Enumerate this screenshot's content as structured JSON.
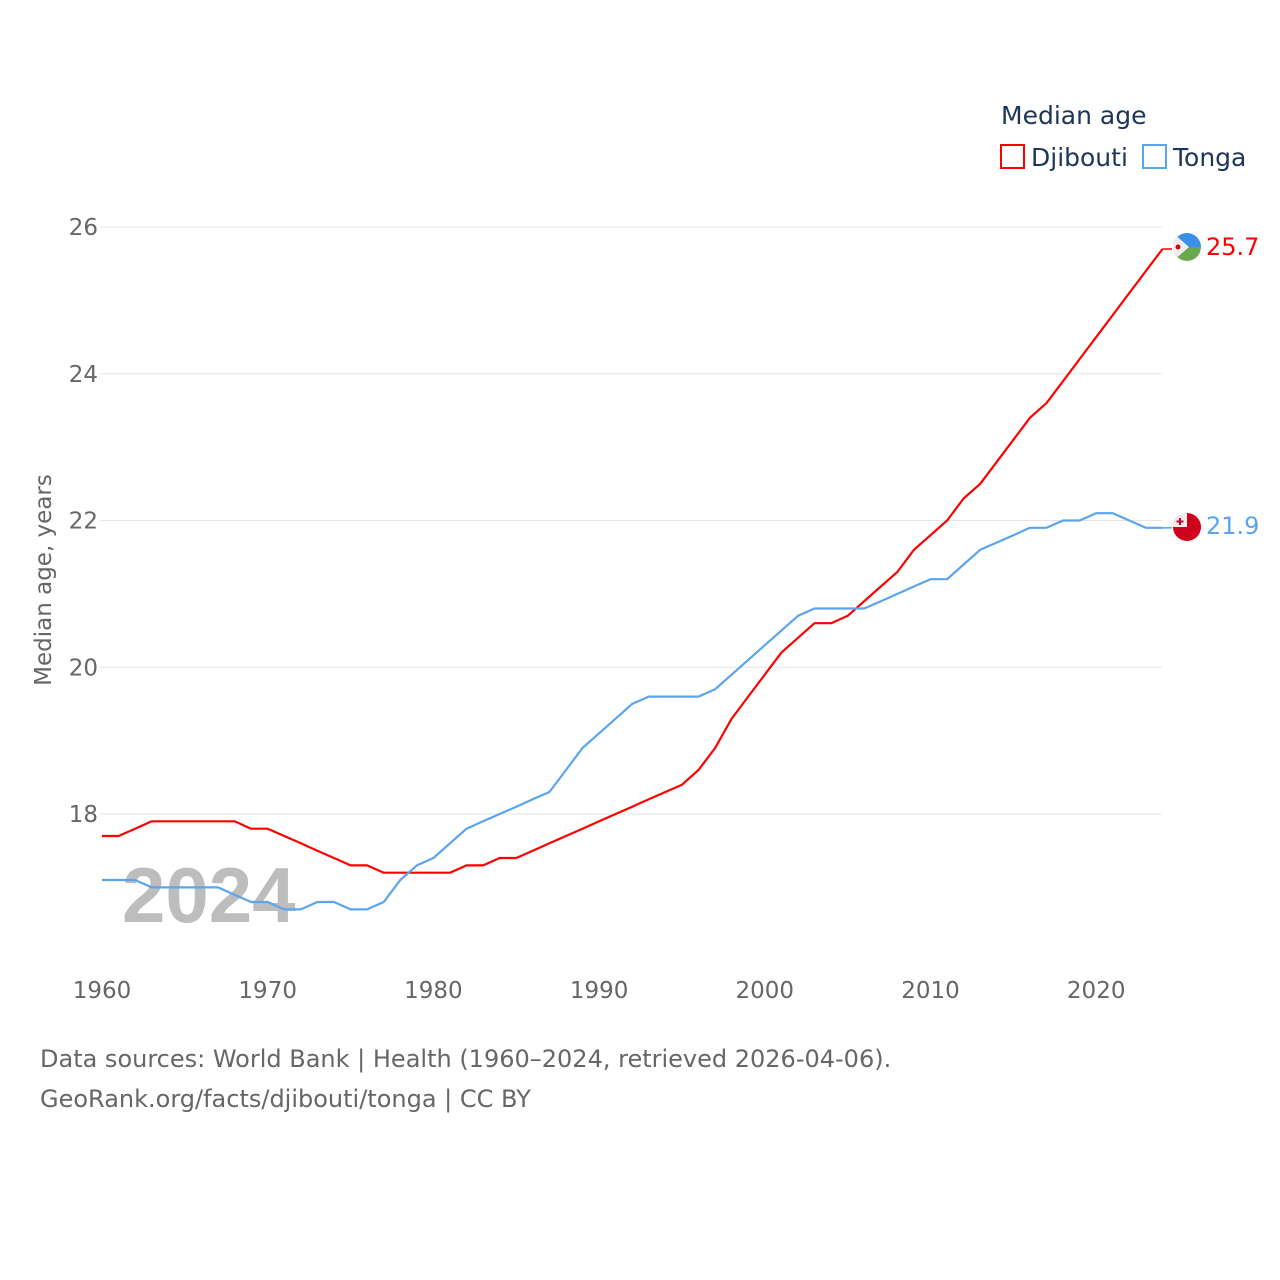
{
  "chart_data": {
    "type": "line",
    "title": "",
    "xlabel": "",
    "ylabel": "Median age, years",
    "xlim": [
      1960,
      2024
    ],
    "ylim": [
      16,
      26
    ],
    "x_ticks": [
      "1960",
      "1970",
      "1980",
      "1990",
      "2000",
      "2010",
      "2020"
    ],
    "y_ticks": [
      "18",
      "20",
      "22",
      "24",
      "26"
    ],
    "grid": true,
    "legend": {
      "title": "Median age",
      "placement": "top-right"
    },
    "watermark_year": "2024",
    "x": [
      1960,
      1961,
      1962,
      1963,
      1964,
      1965,
      1966,
      1967,
      1968,
      1969,
      1970,
      1971,
      1972,
      1973,
      1974,
      1975,
      1976,
      1977,
      1978,
      1979,
      1980,
      1981,
      1982,
      1983,
      1984,
      1985,
      1986,
      1987,
      1988,
      1989,
      1990,
      1991,
      1992,
      1993,
      1994,
      1995,
      1996,
      1997,
      1998,
      1999,
      2000,
      2001,
      2002,
      2003,
      2004,
      2005,
      2006,
      2007,
      2008,
      2009,
      2010,
      2011,
      2012,
      2013,
      2014,
      2015,
      2016,
      2017,
      2018,
      2019,
      2020,
      2021,
      2022,
      2023,
      2024
    ],
    "series": [
      {
        "name": "Djibouti",
        "color": "#ff0000",
        "end_label": "25.7",
        "values": [
          17.7,
          17.7,
          17.8,
          17.9,
          17.9,
          17.9,
          17.9,
          17.9,
          17.9,
          17.8,
          17.8,
          17.7,
          17.6,
          17.5,
          17.4,
          17.3,
          17.3,
          17.2,
          17.2,
          17.2,
          17.2,
          17.2,
          17.3,
          17.3,
          17.4,
          17.4,
          17.5,
          17.6,
          17.7,
          17.8,
          17.9,
          18.0,
          18.1,
          18.2,
          18.3,
          18.4,
          18.6,
          18.9,
          19.3,
          19.6,
          19.9,
          20.2,
          20.4,
          20.6,
          20.6,
          20.7,
          20.9,
          21.1,
          21.3,
          21.6,
          21.8,
          22.0,
          22.3,
          22.5,
          22.8,
          23.1,
          23.4,
          23.6,
          23.9,
          24.2,
          24.5,
          24.8,
          25.1,
          25.4,
          25.7
        ]
      },
      {
        "name": "Tonga",
        "color": "#5ba4ee",
        "end_label": "21.9",
        "values": [
          17.1,
          17.1,
          17.1,
          17.0,
          17.0,
          17.0,
          17.0,
          17.0,
          16.9,
          16.8,
          16.8,
          16.7,
          16.7,
          16.8,
          16.8,
          16.7,
          16.7,
          16.8,
          17.1,
          17.3,
          17.4,
          17.6,
          17.8,
          17.9,
          18.0,
          18.1,
          18.2,
          18.3,
          18.6,
          18.9,
          19.1,
          19.3,
          19.5,
          19.6,
          19.6,
          19.6,
          19.6,
          19.7,
          19.9,
          20.1,
          20.3,
          20.5,
          20.7,
          20.8,
          20.8,
          20.8,
          20.8,
          20.9,
          21.0,
          21.1,
          21.2,
          21.2,
          21.4,
          21.6,
          21.7,
          21.8,
          21.9,
          21.9,
          22.0,
          22.0,
          22.1,
          22.1,
          22.0,
          21.9,
          21.9
        ]
      }
    ]
  },
  "source": {
    "line1": "Data sources: World Bank | Health (1960–2024, retrieved 2026-04-06).",
    "line2": "GeoRank.org/facts/djibouti/tonga | CC BY"
  }
}
